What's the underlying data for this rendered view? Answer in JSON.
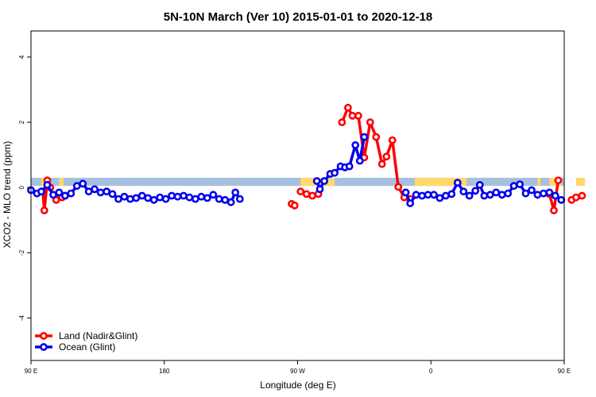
{
  "chart_data": {
    "type": "line",
    "title": "5N-10N March (Ver 10)   2015-01-01 to 2020-12-18",
    "xlabel": "Longitude (deg E)",
    "ylabel": "XCO2 - MLO trend (ppm)",
    "xlim": [
      90,
      450
    ],
    "ylim": [
      -5.3,
      4.8
    ],
    "x_ticks": [
      {
        "value": 90,
        "label": "90 E"
      },
      {
        "value": 180,
        "label": "180"
      },
      {
        "value": 270,
        "label": "90 W"
      },
      {
        "value": 360,
        "label": "0"
      },
      {
        "value": 450,
        "label": "90 E"
      },
      {
        "value": 540,
        "label": "180"
      }
    ],
    "y_ticks": [
      {
        "value": -4,
        "label": "-4"
      },
      {
        "value": -2,
        "label": "-2"
      },
      {
        "value": 0,
        "label": "0"
      },
      {
        "value": 2,
        "label": "2"
      },
      {
        "value": 4,
        "label": "4"
      }
    ],
    "legend_position": "bottom-left",
    "grid": false,
    "background_band": {
      "y_range": [
        0.05,
        0.3
      ],
      "ocean_color": "#a8c0e0",
      "land_color": "#ffd96a"
    },
    "land_band_segments": [
      [
        97,
        103
      ],
      [
        109,
        112
      ],
      [
        272,
        295
      ],
      [
        349,
        384
      ],
      [
        432,
        434
      ],
      [
        440,
        448
      ],
      [
        458,
        464
      ],
      [
        490,
        493
      ],
      [
        509,
        512
      ]
    ],
    "series": [
      {
        "name": "Land (Nadir&Glint)",
        "color": "#ff0000",
        "segments": [
          [
            [
              98,
              -0.12
            ],
            [
              99,
              -0.7
            ],
            [
              101,
              0.22
            ],
            [
              103,
              0.0
            ]
          ],
          [
            [
              107,
              -0.38
            ],
            [
              109,
              -0.22
            ],
            [
              111,
              -0.3
            ],
            [
              113,
              -0.25
            ]
          ],
          [
            [
              266,
              -0.5
            ],
            [
              268,
              -0.55
            ]
          ],
          [
            [
              272,
              -0.12
            ],
            [
              276,
              -0.2
            ],
            [
              280,
              -0.25
            ],
            [
              284,
              -0.2
            ]
          ],
          [
            [
              300,
              2.0
            ],
            [
              304,
              2.45
            ],
            [
              307,
              2.2
            ],
            [
              311,
              2.2
            ],
            [
              315,
              0.92
            ],
            [
              319,
              2.0
            ],
            [
              323,
              1.55
            ],
            [
              327,
              0.72
            ],
            [
              330,
              0.95
            ],
            [
              334,
              1.45
            ],
            [
              338,
              0.02
            ],
            [
              342,
              -0.3
            ],
            [
              346,
              -0.35
            ]
          ],
          [
            [
              440,
              -0.2
            ],
            [
              443,
              -0.7
            ],
            [
              446,
              0.22
            ]
          ],
          [
            [
              455,
              -0.38
            ],
            [
              458,
              -0.3
            ],
            [
              462,
              -0.25
            ]
          ]
        ]
      },
      {
        "name": "Ocean (Glint)",
        "color": "#0000ee",
        "segments": [
          [
            [
              90,
              -0.08
            ],
            [
              94,
              -0.18
            ],
            [
              97,
              -0.12
            ],
            [
              101,
              0.08
            ],
            [
              105,
              -0.22
            ],
            [
              109,
              -0.15
            ],
            [
              113,
              -0.25
            ],
            [
              117,
              -0.18
            ],
            [
              121,
              0.05
            ],
            [
              125,
              0.12
            ],
            [
              129,
              -0.12
            ],
            [
              133,
              -0.05
            ],
            [
              137,
              -0.15
            ],
            [
              141,
              -0.12
            ],
            [
              145,
              -0.2
            ],
            [
              149,
              -0.35
            ],
            [
              153,
              -0.28
            ],
            [
              157,
              -0.35
            ],
            [
              161,
              -0.32
            ],
            [
              165,
              -0.25
            ],
            [
              169,
              -0.32
            ],
            [
              173,
              -0.38
            ],
            [
              177,
              -0.3
            ],
            [
              181,
              -0.35
            ],
            [
              185,
              -0.25
            ],
            [
              189,
              -0.28
            ],
            [
              193,
              -0.25
            ],
            [
              197,
              -0.3
            ],
            [
              201,
              -0.35
            ],
            [
              205,
              -0.28
            ],
            [
              209,
              -0.32
            ],
            [
              213,
              -0.22
            ],
            [
              217,
              -0.35
            ],
            [
              221,
              -0.38
            ],
            [
              225,
              -0.45
            ],
            [
              228,
              -0.15
            ],
            [
              231,
              -0.35
            ]
          ],
          [
            [
              283,
              0.2
            ],
            [
              285,
              -0.05
            ],
            [
              288,
              0.2
            ],
            [
              292,
              0.42
            ],
            [
              295,
              0.45
            ],
            [
              299,
              0.65
            ],
            [
              302,
              0.62
            ],
            [
              305,
              0.65
            ],
            [
              309,
              1.3
            ],
            [
              312,
              0.82
            ],
            [
              315,
              1.55
            ]
          ],
          [
            [
              343,
              -0.15
            ],
            [
              346,
              -0.48
            ],
            [
              350,
              -0.22
            ],
            [
              354,
              -0.25
            ],
            [
              358,
              -0.22
            ],
            [
              362,
              -0.22
            ],
            [
              366,
              -0.32
            ],
            [
              370,
              -0.25
            ],
            [
              374,
              -0.2
            ],
            [
              378,
              0.15
            ],
            [
              382,
              -0.12
            ],
            [
              386,
              -0.25
            ],
            [
              390,
              -0.1
            ],
            [
              393,
              0.08
            ],
            [
              396,
              -0.25
            ],
            [
              400,
              -0.22
            ],
            [
              404,
              -0.15
            ],
            [
              408,
              -0.22
            ],
            [
              412,
              -0.18
            ],
            [
              416,
              0.05
            ],
            [
              420,
              0.1
            ],
            [
              424,
              -0.18
            ],
            [
              428,
              -0.08
            ],
            [
              432,
              -0.22
            ],
            [
              436,
              -0.18
            ],
            [
              440,
              -0.15
            ],
            [
              444,
              -0.25
            ],
            [
              448,
              -0.38
            ]
          ]
        ]
      }
    ]
  }
}
